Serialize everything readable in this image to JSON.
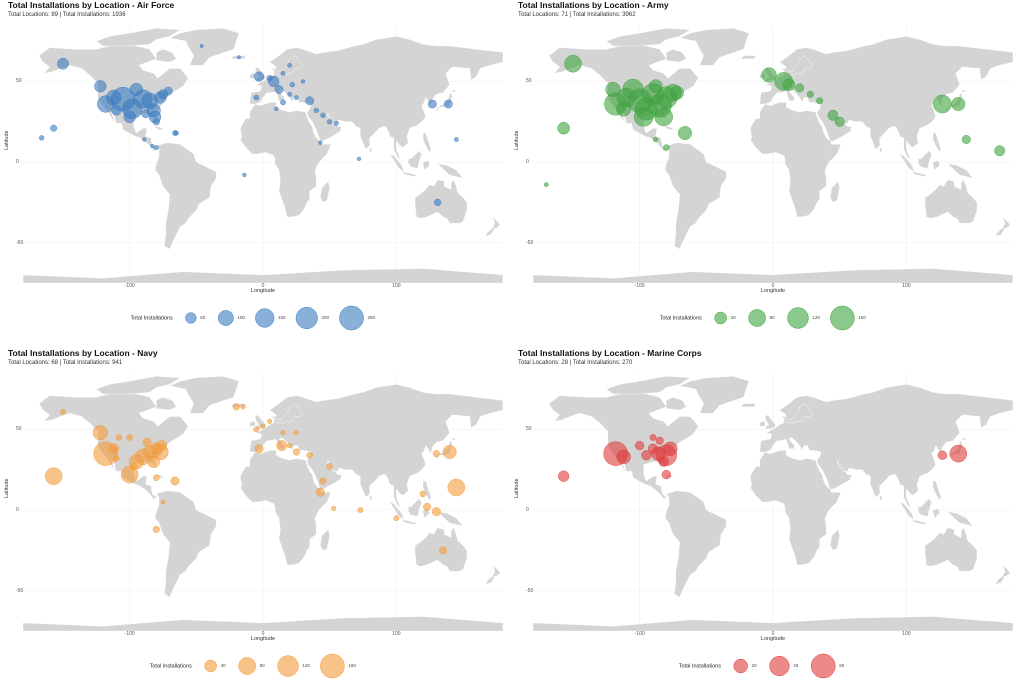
{
  "axes": {
    "xlabel": "Longitude",
    "ylabel": "Latitude",
    "xticks": [
      -100,
      0,
      100
    ],
    "yticks": [
      50,
      0,
      -50
    ],
    "xlim": [
      -180,
      180
    ],
    "ylim": [
      -75,
      85
    ]
  },
  "chart_data": [
    {
      "type": "scatter",
      "title": "Total Installations by Location - Air Force",
      "subtitle": "Total Locations: 89 | Total Installations: 1936",
      "color": "#3a7bbf",
      "legend_title": "Total Installations",
      "legend_values": [
        50,
        100,
        150,
        200,
        250
      ],
      "max_value": 250,
      "points": [
        {
          "lon": -150,
          "lat": 61,
          "v": 55
        },
        {
          "lon": -157,
          "lat": 21,
          "v": 18
        },
        {
          "lon": -166,
          "lat": 15,
          "v": 10
        },
        {
          "lon": -122,
          "lat": 47,
          "v": 60
        },
        {
          "lon": -118,
          "lat": 36,
          "v": 120
        },
        {
          "lon": -112,
          "lat": 40,
          "v": 95
        },
        {
          "lon": -105,
          "lat": 39,
          "v": 250
        },
        {
          "lon": -98,
          "lat": 33,
          "v": 170
        },
        {
          "lon": -90,
          "lat": 39,
          "v": 150
        },
        {
          "lon": -95,
          "lat": 45,
          "v": 70
        },
        {
          "lon": -85,
          "lat": 38,
          "v": 110
        },
        {
          "lon": -82,
          "lat": 32,
          "v": 80
        },
        {
          "lon": -77,
          "lat": 40,
          "v": 60
        },
        {
          "lon": -75,
          "lat": 42,
          "v": 40
        },
        {
          "lon": -71,
          "lat": 44,
          "v": 30
        },
        {
          "lon": -100,
          "lat": 28,
          "v": 60
        },
        {
          "lon": -81,
          "lat": 28,
          "v": 60
        },
        {
          "lon": -88,
          "lat": 30,
          "v": 30
        },
        {
          "lon": -110,
          "lat": 32,
          "v": 40
        },
        {
          "lon": -80,
          "lat": 25,
          "v": 20
        },
        {
          "lon": -66,
          "lat": 18,
          "v": 12
        },
        {
          "lon": -80,
          "lat": 9,
          "v": 8
        },
        {
          "lon": -89,
          "lat": 14,
          "v": 6
        },
        {
          "lon": -83,
          "lat": 10,
          "v": 6
        },
        {
          "lon": -65,
          "lat": 18,
          "v": 8
        },
        {
          "lon": -46,
          "lat": 72,
          "v": 5
        },
        {
          "lon": -18,
          "lat": 65,
          "v": 5
        },
        {
          "lon": -3,
          "lat": 53,
          "v": 40
        },
        {
          "lon": 8,
          "lat": 50,
          "v": 50
        },
        {
          "lon": 12,
          "lat": 45,
          "v": 30
        },
        {
          "lon": -5,
          "lat": 40,
          "v": 12
        },
        {
          "lon": 5,
          "lat": 52,
          "v": 15
        },
        {
          "lon": 15,
          "lat": 55,
          "v": 8
        },
        {
          "lon": 20,
          "lat": 42,
          "v": 8
        },
        {
          "lon": 25,
          "lat": 40,
          "v": 8
        },
        {
          "lon": 35,
          "lat": 38,
          "v": 30
        },
        {
          "lon": 40,
          "lat": 32,
          "v": 10
        },
        {
          "lon": 45,
          "lat": 29,
          "v": 10
        },
        {
          "lon": 50,
          "lat": 25,
          "v": 10
        },
        {
          "lon": 55,
          "lat": 24,
          "v": 8
        },
        {
          "lon": 43,
          "lat": 12,
          "v": 6
        },
        {
          "lon": 10,
          "lat": 33,
          "v": 6
        },
        {
          "lon": 15,
          "lat": 37,
          "v": 12
        },
        {
          "lon": 30,
          "lat": 50,
          "v": 6
        },
        {
          "lon": 20,
          "lat": 60,
          "v": 8
        },
        {
          "lon": 22,
          "lat": 48,
          "v": 10
        },
        {
          "lon": 72,
          "lat": 2,
          "v": 6
        },
        {
          "lon": -14,
          "lat": -8,
          "v": 6
        },
        {
          "lon": 127,
          "lat": 36,
          "v": 30
        },
        {
          "lon": 139,
          "lat": 36,
          "v": 30
        },
        {
          "lon": 145,
          "lat": 14,
          "v": 8
        },
        {
          "lon": 131,
          "lat": -25,
          "v": 20
        }
      ]
    },
    {
      "type": "scatter",
      "title": "Total Installations by Location - Army",
      "subtitle": "Total Locations: 71 | Total Installations: 3962",
      "color": "#3da33d",
      "legend_title": "Total Installations",
      "legend_values": [
        40,
        80,
        120,
        160
      ],
      "max_value": 160,
      "points": [
        {
          "lon": -150,
          "lat": 61,
          "v": 80
        },
        {
          "lon": -157,
          "lat": 21,
          "v": 40
        },
        {
          "lon": -170,
          "lat": -14,
          "v": 5
        },
        {
          "lon": -120,
          "lat": 45,
          "v": 60
        },
        {
          "lon": -118,
          "lat": 36,
          "v": 140
        },
        {
          "lon": -110,
          "lat": 40,
          "v": 100
        },
        {
          "lon": -105,
          "lat": 45,
          "v": 120
        },
        {
          "lon": -100,
          "lat": 38,
          "v": 160
        },
        {
          "lon": -95,
          "lat": 33,
          "v": 140
        },
        {
          "lon": -90,
          "lat": 42,
          "v": 130
        },
        {
          "lon": -85,
          "lat": 35,
          "v": 150
        },
        {
          "lon": -80,
          "lat": 40,
          "v": 130
        },
        {
          "lon": -75,
          "lat": 43,
          "v": 80
        },
        {
          "lon": -97,
          "lat": 28,
          "v": 100
        },
        {
          "lon": -82,
          "lat": 28,
          "v": 90
        },
        {
          "lon": -72,
          "lat": 43,
          "v": 50
        },
        {
          "lon": -112,
          "lat": 33,
          "v": 60
        },
        {
          "lon": -88,
          "lat": 47,
          "v": 50
        },
        {
          "lon": -66,
          "lat": 18,
          "v": 50
        },
        {
          "lon": -80,
          "lat": 9,
          "v": 10
        },
        {
          "lon": -88,
          "lat": 14,
          "v": 6
        },
        {
          "lon": -3,
          "lat": 54,
          "v": 60
        },
        {
          "lon": 8,
          "lat": 50,
          "v": 90
        },
        {
          "lon": 12,
          "lat": 48,
          "v": 40
        },
        {
          "lon": 20,
          "lat": 46,
          "v": 20
        },
        {
          "lon": 28,
          "lat": 42,
          "v": 12
        },
        {
          "lon": 35,
          "lat": 38,
          "v": 12
        },
        {
          "lon": 45,
          "lat": 29,
          "v": 30
        },
        {
          "lon": 50,
          "lat": 25,
          "v": 25
        },
        {
          "lon": 127,
          "lat": 36,
          "v": 90
        },
        {
          "lon": 139,
          "lat": 36,
          "v": 50
        },
        {
          "lon": 145,
          "lat": 14,
          "v": 20
        },
        {
          "lon": 170,
          "lat": 7,
          "v": 30
        }
      ]
    },
    {
      "type": "scatter",
      "title": "Total Installations by Location - Navy",
      "subtitle": "Total Locations: 68 | Total Installations: 941",
      "color": "#f39b3a",
      "legend_title": "Total Installations",
      "legend_values": [
        40,
        80,
        120,
        160
      ],
      "max_value": 160,
      "points": [
        {
          "lon": -150,
          "lat": 61,
          "v": 8
        },
        {
          "lon": -157,
          "lat": 21,
          "v": 80
        },
        {
          "lon": -122,
          "lat": 48,
          "v": 60
        },
        {
          "lon": -118,
          "lat": 35,
          "v": 160
        },
        {
          "lon": -112,
          "lat": 38,
          "v": 30
        },
        {
          "lon": -95,
          "lat": 30,
          "v": 60
        },
        {
          "lon": -90,
          "lat": 33,
          "v": 70
        },
        {
          "lon": -85,
          "lat": 36,
          "v": 50
        },
        {
          "lon": -80,
          "lat": 38,
          "v": 40
        },
        {
          "lon": -76,
          "lat": 40,
          "v": 30
        },
        {
          "lon": -77,
          "lat": 36,
          "v": 70
        },
        {
          "lon": -82,
          "lat": 30,
          "v": 40
        },
        {
          "lon": -87,
          "lat": 42,
          "v": 20
        },
        {
          "lon": -100,
          "lat": 45,
          "v": 10
        },
        {
          "lon": -108,
          "lat": 45,
          "v": 10
        },
        {
          "lon": -97,
          "lat": 27,
          "v": 15
        },
        {
          "lon": -110,
          "lat": 32,
          "v": 10
        },
        {
          "lon": -100,
          "lat": 22,
          "v": 80
        },
        {
          "lon": -80,
          "lat": 20,
          "v": 10
        },
        {
          "lon": -66,
          "lat": 18,
          "v": 20
        },
        {
          "lon": -75,
          "lat": 5,
          "v": 5
        },
        {
          "lon": -80,
          "lat": -12,
          "v": 12
        },
        {
          "lon": -20,
          "lat": 64,
          "v": 12
        },
        {
          "lon": -15,
          "lat": 64,
          "v": 6
        },
        {
          "lon": -5,
          "lat": 50,
          "v": 8
        },
        {
          "lon": 0,
          "lat": 52,
          "v": 6
        },
        {
          "lon": 5,
          "lat": 55,
          "v": 6
        },
        {
          "lon": 15,
          "lat": 48,
          "v": 6
        },
        {
          "lon": 25,
          "lat": 48,
          "v": 6
        },
        {
          "lon": 20,
          "lat": 40,
          "v": 6
        },
        {
          "lon": 14,
          "lat": 40,
          "v": 30
        },
        {
          "lon": -3,
          "lat": 38,
          "v": 20
        },
        {
          "lon": 25,
          "lat": 36,
          "v": 12
        },
        {
          "lon": 35,
          "lat": 34,
          "v": 10
        },
        {
          "lon": 50,
          "lat": 27,
          "v": 10
        },
        {
          "lon": 45,
          "lat": 18,
          "v": 12
        },
        {
          "lon": 43,
          "lat": 11,
          "v": 20
        },
        {
          "lon": 73,
          "lat": 0,
          "v": 8
        },
        {
          "lon": 53,
          "lat": 1,
          "v": 6
        },
        {
          "lon": 130,
          "lat": 35,
          "v": 12
        },
        {
          "lon": 140,
          "lat": 36,
          "v": 50
        },
        {
          "lon": 145,
          "lat": 14,
          "v": 80
        },
        {
          "lon": 120,
          "lat": 10,
          "v": 10
        },
        {
          "lon": 123,
          "lat": 2,
          "v": 15
        },
        {
          "lon": 130,
          "lat": -1,
          "v": 20
        },
        {
          "lon": 100,
          "lat": -5,
          "v": 8
        },
        {
          "lon": 135,
          "lat": -25,
          "v": 15
        }
      ]
    },
    {
      "type": "scatter",
      "title": "Total Installations by Location - Marine Corps",
      "subtitle": "Total Locations: 28 | Total Installations: 270",
      "color": "#e03b3b",
      "legend_title": "Total Installations",
      "legend_values": [
        20,
        40,
        60
      ],
      "max_value": 60,
      "points": [
        {
          "lon": -157,
          "lat": 21,
          "v": 12
        },
        {
          "lon": -118,
          "lat": 35,
          "v": 60
        },
        {
          "lon": -112,
          "lat": 33,
          "v": 20
        },
        {
          "lon": -100,
          "lat": 40,
          "v": 8
        },
        {
          "lon": -95,
          "lat": 34,
          "v": 10
        },
        {
          "lon": -90,
          "lat": 38,
          "v": 10
        },
        {
          "lon": -86,
          "lat": 35,
          "v": 20
        },
        {
          "lon": -80,
          "lat": 34,
          "v": 45
        },
        {
          "lon": -77,
          "lat": 38,
          "v": 20
        },
        {
          "lon": -82,
          "lat": 30,
          "v": 10
        },
        {
          "lon": -85,
          "lat": 43,
          "v": 6
        },
        {
          "lon": -90,
          "lat": 45,
          "v": 4
        },
        {
          "lon": -80,
          "lat": 22,
          "v": 8
        },
        {
          "lon": 127,
          "lat": 34,
          "v": 8
        },
        {
          "lon": 139,
          "lat": 35,
          "v": 30
        }
      ]
    }
  ]
}
